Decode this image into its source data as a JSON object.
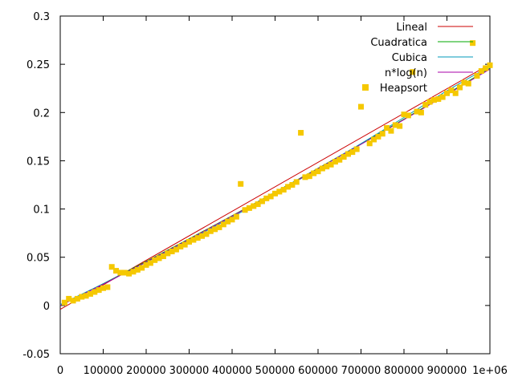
{
  "chart_data": {
    "type": "scatter",
    "title": "",
    "xlabel": "",
    "ylabel": "",
    "xlim": [
      0,
      1000000
    ],
    "ylim": [
      -0.05,
      0.3
    ],
    "grid": false,
    "legend_position": "top-right",
    "x_ticks": [
      0,
      100000,
      200000,
      300000,
      400000,
      500000,
      600000,
      700000,
      800000,
      900000,
      1000000
    ],
    "x_tick_labels": [
      "0",
      "100000",
      "200000",
      "300000",
      "400000",
      "500000",
      "600000",
      "700000",
      "800000",
      "900000",
      "1e+06"
    ],
    "y_ticks": [
      -0.05,
      0,
      0.05,
      0.1,
      0.15,
      0.2,
      0.25,
      0.3
    ],
    "y_tick_labels": [
      "-0.05",
      "0",
      "0.05",
      "0.1",
      "0.15",
      "0.2",
      "0.25",
      "0.3"
    ],
    "series": [
      {
        "name": "Lineal",
        "kind": "line",
        "color": "#cc0000",
        "x": [
          0,
          1000000
        ],
        "y": [
          -0.004,
          0.25
        ]
      },
      {
        "name": "Cuadratica",
        "kind": "line",
        "color": "#00aa00",
        "x": [
          0,
          100000,
          200000,
          300000,
          400000,
          500000,
          600000,
          700000,
          800000,
          900000,
          1000000
        ],
        "y": [
          0.0,
          0.0226,
          0.0456,
          0.0691,
          0.093,
          0.1174,
          0.1422,
          0.1675,
          0.1932,
          0.2194,
          0.246
        ]
      },
      {
        "name": "Cubica",
        "kind": "line",
        "color": "#0099bb",
        "x": [
          0,
          100000,
          200000,
          300000,
          400000,
          500000,
          600000,
          700000,
          800000,
          900000,
          1000000
        ],
        "y": [
          0.001,
          0.0225,
          0.0448,
          0.0678,
          0.0916,
          0.1162,
          0.1416,
          0.1678,
          0.1948,
          0.2226,
          0.248
        ]
      },
      {
        "name": "n*log(n)",
        "kind": "line",
        "color": "#aa00aa",
        "x": [
          0,
          100000,
          200000,
          300000,
          400000,
          500000,
          600000,
          700000,
          800000,
          900000,
          1000000
        ],
        "y": [
          0.0,
          0.022,
          0.045,
          0.0686,
          0.0926,
          0.117,
          0.1418,
          0.167,
          0.1926,
          0.2186,
          0.245
        ]
      },
      {
        "name": "Heapsort",
        "kind": "points",
        "color": "#f5c800",
        "x": [
          10000,
          20000,
          30000,
          40000,
          50000,
          60000,
          70000,
          80000,
          90000,
          100000,
          110000,
          120000,
          130000,
          140000,
          150000,
          160000,
          170000,
          180000,
          190000,
          200000,
          210000,
          220000,
          230000,
          240000,
          250000,
          260000,
          270000,
          280000,
          290000,
          300000,
          310000,
          320000,
          330000,
          340000,
          350000,
          360000,
          370000,
          380000,
          390000,
          400000,
          410000,
          420000,
          430000,
          440000,
          450000,
          460000,
          470000,
          480000,
          490000,
          500000,
          510000,
          520000,
          530000,
          540000,
          550000,
          560000,
          570000,
          580000,
          590000,
          600000,
          610000,
          620000,
          630000,
          640000,
          650000,
          660000,
          670000,
          680000,
          690000,
          700000,
          710000,
          720000,
          730000,
          740000,
          750000,
          760000,
          770000,
          780000,
          790000,
          800000,
          810000,
          820000,
          830000,
          840000,
          850000,
          860000,
          870000,
          880000,
          890000,
          900000,
          910000,
          920000,
          930000,
          940000,
          950000,
          960000,
          970000,
          980000,
          990000,
          1000000
        ],
        "y": [
          0.003,
          0.007,
          0.005,
          0.007,
          0.009,
          0.01,
          0.012,
          0.014,
          0.016,
          0.018,
          0.019,
          0.04,
          0.036,
          0.034,
          0.034,
          0.033,
          0.035,
          0.037,
          0.039,
          0.042,
          0.044,
          0.047,
          0.049,
          0.051,
          0.054,
          0.056,
          0.058,
          0.061,
          0.063,
          0.066,
          0.068,
          0.07,
          0.072,
          0.074,
          0.077,
          0.079,
          0.081,
          0.084,
          0.087,
          0.089,
          0.092,
          0.126,
          0.099,
          0.101,
          0.103,
          0.105,
          0.108,
          0.111,
          0.113,
          0.116,
          0.118,
          0.12,
          0.123,
          0.125,
          0.128,
          0.179,
          0.133,
          0.134,
          0.137,
          0.139,
          0.142,
          0.144,
          0.146,
          0.149,
          0.151,
          0.154,
          0.157,
          0.159,
          0.162,
          0.206,
          0.226,
          0.168,
          0.172,
          0.175,
          0.178,
          0.184,
          0.181,
          0.187,
          0.186,
          0.198,
          0.197,
          0.242,
          0.201,
          0.2,
          0.208,
          0.211,
          0.213,
          0.214,
          0.216,
          0.22,
          0.223,
          0.22,
          0.226,
          0.231,
          0.23,
          0.272,
          0.238,
          0.243,
          0.246,
          0.249
        ]
      }
    ]
  }
}
